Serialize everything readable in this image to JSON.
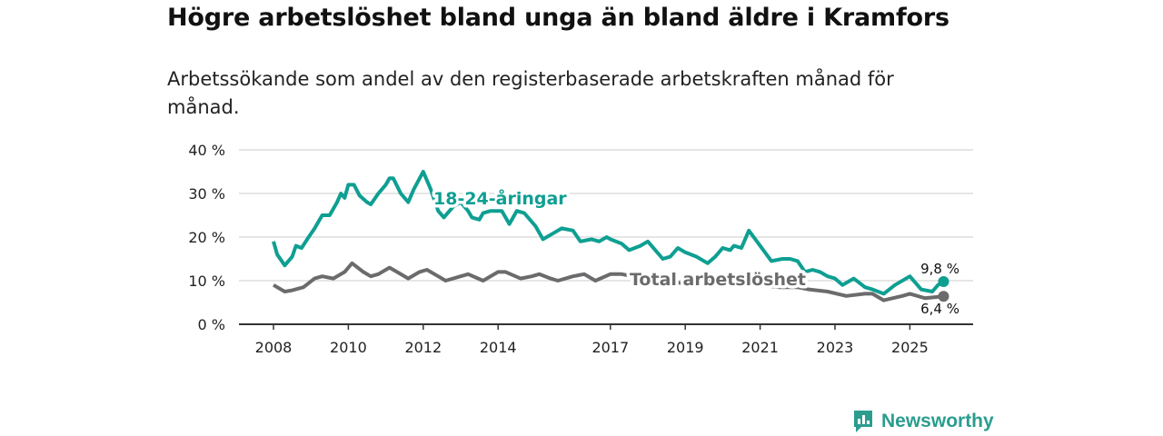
{
  "title": "Högre arbetslöshet bland unga än bland äldre i Kramfors",
  "subtitle": "Arbetssökande som andel av den registerbaserade arbetskraften månad för månad.",
  "brand": "Newsworthy",
  "chart_data": {
    "type": "line",
    "ylim": [
      0,
      40
    ],
    "xlim": [
      2007.3,
      2026.6
    ],
    "yticks": [
      0,
      10,
      20,
      30,
      40
    ],
    "ytick_labels": [
      "0 %",
      "10 %",
      "20 %",
      "30 %",
      "40 %"
    ],
    "xticks": [
      2008,
      2010,
      2012,
      2014,
      2017,
      2019,
      2021,
      2023,
      2025
    ],
    "xtick_labels": [
      "2008",
      "2010",
      "2012",
      "2014",
      "2017",
      "2019",
      "2021",
      "2023",
      "2025"
    ],
    "grid": true,
    "series": [
      {
        "name": "18-24-åringar",
        "color": "#0e9f92",
        "end_label": "9,8 %",
        "x": [
          2008.0,
          2008.1,
          2008.3,
          2008.5,
          2008.6,
          2008.75,
          2008.9,
          2009.1,
          2009.3,
          2009.5,
          2009.7,
          2009.8,
          2009.9,
          2010.0,
          2010.15,
          2010.3,
          2010.5,
          2010.6,
          2010.8,
          2011.0,
          2011.1,
          2011.2,
          2011.4,
          2011.6,
          2011.75,
          2012.0,
          2012.2,
          2012.4,
          2012.55,
          2012.8,
          2013.0,
          2013.2,
          2013.3,
          2013.5,
          2013.6,
          2013.8,
          2014.1,
          2014.3,
          2014.5,
          2014.7,
          2015.0,
          2015.2,
          2015.5,
          2015.7,
          2016.0,
          2016.2,
          2016.5,
          2016.7,
          2016.9,
          2017.0,
          2017.3,
          2017.5,
          2017.8,
          2018.0,
          2018.4,
          2018.6,
          2018.8,
          2019.0,
          2019.3,
          2019.6,
          2019.8,
          2020.0,
          2020.2,
          2020.3,
          2020.5,
          2020.7,
          2021.0,
          2021.3,
          2021.6,
          2021.8,
          2022.0,
          2022.2,
          2022.4,
          2022.6,
          2022.8,
          2023.0,
          2023.2,
          2023.5,
          2023.8,
          2024.0,
          2024.3,
          2024.6,
          2025.0,
          2025.3,
          2025.6,
          2025.75,
          2025.9
        ],
        "y": [
          19,
          16,
          13.5,
          15.5,
          18,
          17.5,
          19.5,
          22,
          25,
          25,
          28,
          30,
          29,
          32,
          32,
          29.5,
          28,
          27.5,
          30,
          32,
          33.5,
          33.5,
          30,
          28,
          31,
          35,
          31,
          26,
          24.5,
          27,
          28,
          26,
          24.5,
          24,
          25.5,
          26,
          26,
          23,
          26,
          25.5,
          22.5,
          19.5,
          21,
          22,
          21.5,
          19,
          19.5,
          19,
          20,
          19.5,
          18.5,
          17,
          18,
          19,
          15,
          15.5,
          17.5,
          16.5,
          15.5,
          14,
          15.5,
          17.5,
          17,
          18,
          17.5,
          21.5,
          18,
          14.5,
          15,
          15,
          14.5,
          12,
          12.5,
          12,
          11,
          10.5,
          9,
          10.5,
          8.5,
          8,
          7,
          9,
          11,
          8,
          7.5,
          9,
          9.8
        ]
      },
      {
        "name": "Total arbetslöshet",
        "color": "#6b6b6d",
        "end_label": "6,4 %",
        "x": [
          2008.0,
          2008.3,
          2008.5,
          2008.8,
          2009.1,
          2009.3,
          2009.6,
          2009.9,
          2010.1,
          2010.4,
          2010.6,
          2010.8,
          2011.1,
          2011.3,
          2011.6,
          2011.9,
          2012.1,
          2012.4,
          2012.6,
          2013.0,
          2013.2,
          2013.6,
          2014.0,
          2014.2,
          2014.6,
          2014.9,
          2015.1,
          2015.4,
          2015.6,
          2016.0,
          2016.3,
          2016.6,
          2017.0,
          2017.3,
          2017.6,
          2018.0,
          2018.5,
          2019.0,
          2019.5,
          2020.0,
          2020.5,
          2021.0,
          2021.5,
          2022.0,
          2022.3,
          2022.8,
          2023.3,
          2023.8,
          2024.0,
          2024.3,
          2024.8,
          2025.0,
          2025.4,
          2025.9
        ],
        "y": [
          9,
          7.5,
          7.8,
          8.5,
          10.5,
          11,
          10.5,
          12,
          14,
          12,
          11,
          11.5,
          13,
          12,
          10.5,
          12,
          12.5,
          11,
          10,
          11,
          11.5,
          10,
          12,
          12,
          10.5,
          11,
          11.5,
          10.5,
          10,
          11,
          11.5,
          10,
          11.5,
          11.5,
          11,
          10.5,
          9.5,
          9.5,
          10,
          9.5,
          9.5,
          9,
          8.5,
          8.5,
          8,
          7.5,
          6.5,
          7,
          7,
          5.5,
          6.5,
          7,
          6,
          6.4
        ]
      }
    ]
  }
}
